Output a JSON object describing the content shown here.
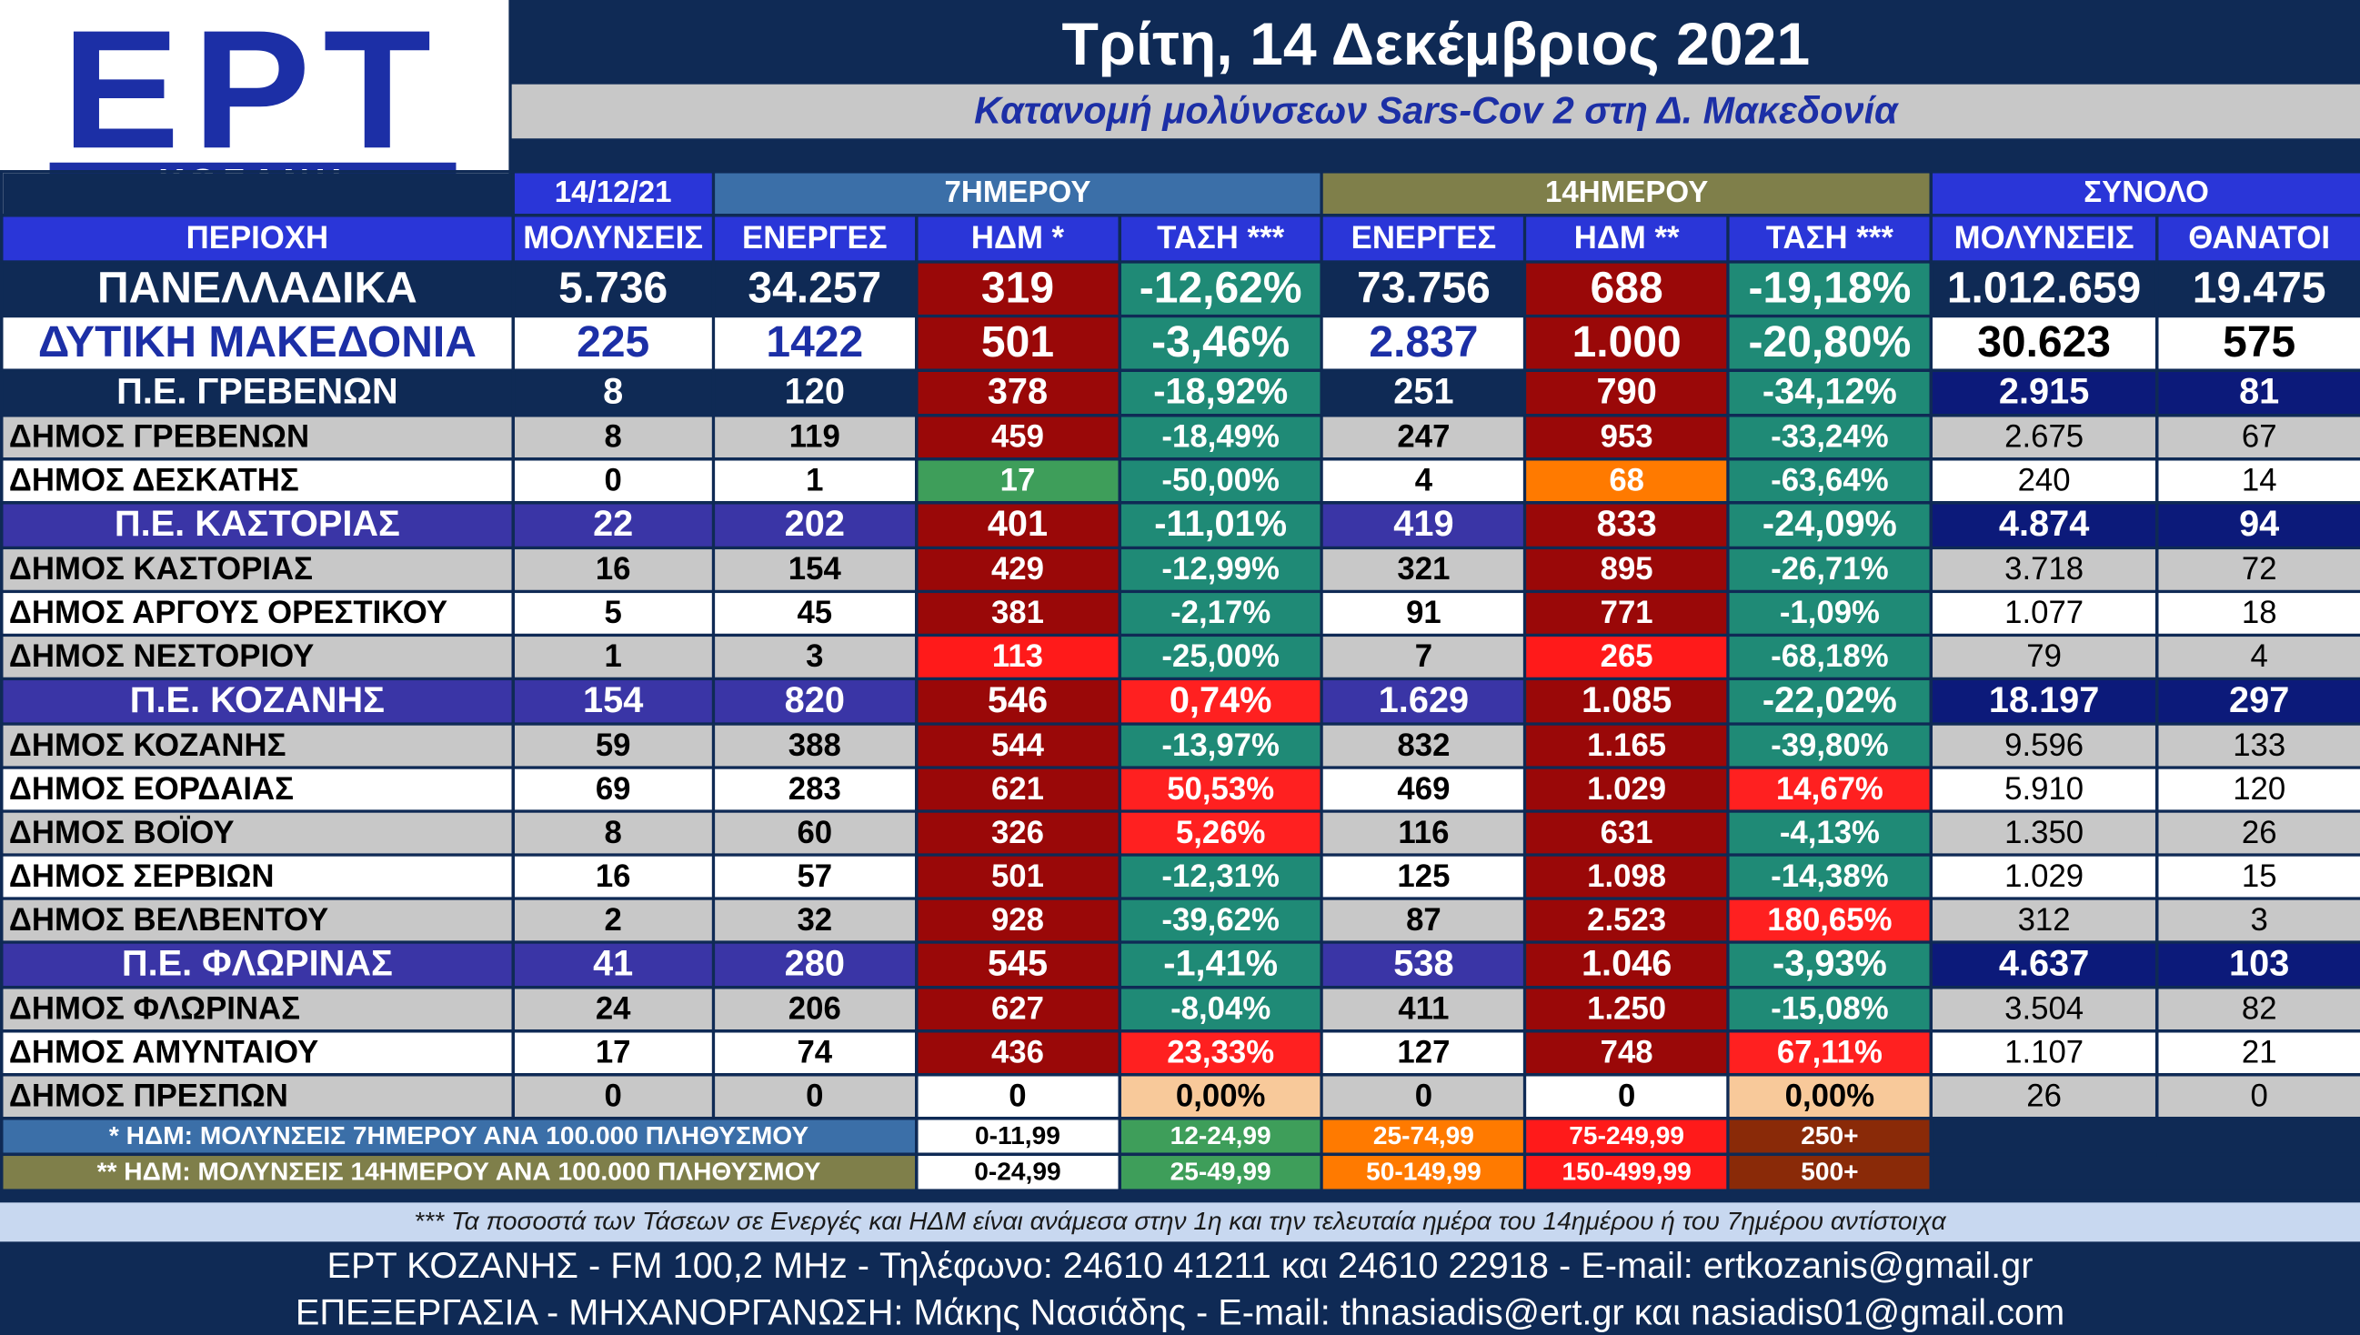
{
  "logo": {
    "top": "ΕΡΤ",
    "bottom": "ΚΟΖΑΝΗ"
  },
  "title": "Τρίτη, 14 Δεκέμβριος 2021",
  "subtitle": "Κατανομή μολύνσεων Sars-Cov 2 στη Δ. Μακεδονία",
  "header_groups": [
    "14/12/21",
    "7ΗΜΕΡΟΥ",
    "14ΗΜΕΡΟΥ",
    "ΣΥΝΟΛΟ"
  ],
  "columns": [
    "ΠΕΡΙΟΧΗ",
    "ΜΟΛΥΝΣΕΙΣ",
    "ΕΝΕΡΓΕΣ",
    "ΗΔΜ *",
    "ΤΑΣΗ ***",
    "ΕΝΕΡΓΕΣ",
    "ΗΔΜ **",
    "ΤΑΣΗ ***",
    "ΜΟΛΥΝΣΕΙΣ",
    "ΘΑΝΑΤΟΙ"
  ],
  "rows": [
    {
      "type": "tot1",
      "cells": [
        "ΠΑΝΕΛΛΑΔΙΚΑ",
        "5.736",
        "34.257",
        "319",
        "-12,62%",
        "73.756",
        "688",
        "-19,18%",
        "1.012.659",
        "19.475"
      ]
    },
    {
      "type": "tot2",
      "cells": [
        "ΔΥΤΙΚΗ ΜΑΚΕΔΟΝΙΑ",
        "225",
        "1422",
        "501",
        "-3,46%",
        "2.837",
        "1.000",
        "-20,80%",
        "30.623",
        "575"
      ]
    },
    {
      "type": "pe",
      "shade": "dark",
      "cells": [
        "Π.Ε. ΓΡΕΒΕΝΩΝ",
        "8",
        "120",
        "378",
        "-18,92%",
        "251",
        "790",
        "-34,12%",
        "2.915",
        "81"
      ]
    },
    {
      "type": "dm",
      "shade": "grey",
      "cells": [
        "ΔΗΜΟΣ ΓΡΕΒΕΝΩΝ",
        "8",
        "119",
        "459",
        "-18,49%",
        "247",
        "953",
        "-33,24%",
        "2.675",
        "67"
      ]
    },
    {
      "type": "dm",
      "shade": "white",
      "cells": [
        "ΔΗΜΟΣ ΔΕΣΚΑΤΗΣ",
        "0",
        "1",
        "17",
        "-50,00%",
        "4",
        "68",
        "-63,64%",
        "240",
        "14"
      ]
    },
    {
      "type": "pe",
      "shade": "purple",
      "cells": [
        "Π.Ε. ΚΑΣΤΟΡΙΑΣ",
        "22",
        "202",
        "401",
        "-11,01%",
        "419",
        "833",
        "-24,09%",
        "4.874",
        "94"
      ]
    },
    {
      "type": "dm",
      "shade": "grey",
      "cells": [
        "ΔΗΜΟΣ ΚΑΣΤΟΡΙΑΣ",
        "16",
        "154",
        "429",
        "-12,99%",
        "321",
        "895",
        "-26,71%",
        "3.718",
        "72"
      ]
    },
    {
      "type": "dm",
      "shade": "white",
      "cells": [
        "ΔΗΜΟΣ ΑΡΓΟΥΣ ΟΡΕΣΤΙΚΟΥ",
        "5",
        "45",
        "381",
        "-2,17%",
        "91",
        "771",
        "-1,09%",
        "1.077",
        "18"
      ]
    },
    {
      "type": "dm",
      "shade": "grey",
      "cells": [
        "ΔΗΜΟΣ ΝΕΣΤΟΡΙΟΥ",
        "1",
        "3",
        "113",
        "-25,00%",
        "7",
        "265",
        "-68,18%",
        "79",
        "4"
      ]
    },
    {
      "type": "pe",
      "shade": "purple",
      "cells": [
        "Π.Ε. ΚΟΖΑΝΗΣ",
        "154",
        "820",
        "546",
        "0,74%",
        "1.629",
        "1.085",
        "-22,02%",
        "18.197",
        "297"
      ]
    },
    {
      "type": "dm",
      "shade": "grey",
      "cells": [
        "ΔΗΜΟΣ ΚΟΖΑΝΗΣ",
        "59",
        "388",
        "544",
        "-13,97%",
        "832",
        "1.165",
        "-39,80%",
        "9.596",
        "133"
      ]
    },
    {
      "type": "dm",
      "shade": "white",
      "cells": [
        "ΔΗΜΟΣ ΕΟΡΔΑΙΑΣ",
        "69",
        "283",
        "621",
        "50,53%",
        "469",
        "1.029",
        "14,67%",
        "5.910",
        "120"
      ]
    },
    {
      "type": "dm",
      "shade": "grey",
      "cells": [
        "ΔΗΜΟΣ ΒΟΪΟΥ",
        "8",
        "60",
        "326",
        "5,26%",
        "116",
        "631",
        "-4,13%",
        "1.350",
        "26"
      ]
    },
    {
      "type": "dm",
      "shade": "white",
      "cells": [
        "ΔΗΜΟΣ ΣΕΡΒΙΩΝ",
        "16",
        "57",
        "501",
        "-12,31%",
        "125",
        "1.098",
        "-14,38%",
        "1.029",
        "15"
      ]
    },
    {
      "type": "dm",
      "shade": "grey",
      "cells": [
        "ΔΗΜΟΣ ΒΕΛΒΕΝΤΟΥ",
        "2",
        "32",
        "928",
        "-39,62%",
        "87",
        "2.523",
        "180,65%",
        "312",
        "3"
      ]
    },
    {
      "type": "pe",
      "shade": "purple",
      "cells": [
        "Π.Ε. ΦΛΩΡΙΝΑΣ",
        "41",
        "280",
        "545",
        "-1,41%",
        "538",
        "1.046",
        "-3,93%",
        "4.637",
        "103"
      ]
    },
    {
      "type": "dm",
      "shade": "grey",
      "cells": [
        "ΔΗΜΟΣ ΦΛΩΡΙΝΑΣ",
        "24",
        "206",
        "627",
        "-8,04%",
        "411",
        "1.250",
        "-15,08%",
        "3.504",
        "82"
      ]
    },
    {
      "type": "dm",
      "shade": "white",
      "cells": [
        "ΔΗΜΟΣ ΑΜΥΝΤΑΙΟΥ",
        "17",
        "74",
        "436",
        "23,33%",
        "127",
        "748",
        "67,11%",
        "1.107",
        "21"
      ]
    },
    {
      "type": "dm",
      "shade": "grey",
      "cells": [
        "ΔΗΜΟΣ ΠΡΕΣΠΩΝ",
        "0",
        "0",
        "0",
        "0,00%",
        "0",
        "0",
        "0,00%",
        "26",
        "0"
      ]
    }
  ],
  "legend": [
    {
      "label": "* ΗΔΜ: ΜΟΛΥΝΣΕΙΣ 7ΗΜΕΡΟΥ ΑΝΑ 100.000 ΠΛΗΘΥΣΜΟΥ",
      "ranges": [
        "0-11,99",
        "12-24,99",
        "25-74,99",
        "75-249,99",
        "250+"
      ]
    },
    {
      "label": "** ΗΔΜ: ΜΟΛΥΝΣΕΙΣ 14ΗΜΕΡΟΥ ΑΝΑ 100.000 ΠΛΗΘΥΣΜΟΥ",
      "ranges": [
        "0-24,99",
        "25-49,99",
        "50-149,99",
        "150-499,99",
        "500+"
      ]
    }
  ],
  "note": "*** Τα ποσοστά των Τάσεων σε Ενεργές και ΗΔΜ είναι ανάμεσα στην 1η και την τελευταία ημέρα του 14ημέρου ή του 7ημέρου αντίστοιχα",
  "footer_line1": "ΕΡΤ ΚΟΖΑΝΗΣ - FM 100,2 MHz - Τηλέφωνο:  24610 41211 και 24610 22918 - E-mail: ertkozanis@gmail.gr",
  "footer_line2": "ΕΠΕΞΕΡΓΑΣΙΑ  -  ΜΗΧΑΝΟΡΓΑΝΩΣΗ: Μάκης Νασιάδης  -   E-mail: thnasiadis@ert.gr και nasiadis01@gmail.com",
  "colors": {
    "navy": "#0f2a55",
    "header_blue": "#2a36d8",
    "purple": "#3a35a6",
    "grey": "#c8c8c8",
    "white": "#ffffff",
    "hdm_darkred": "#9a0808",
    "hdm_red": "#ff1a1a",
    "hdm_orange": "#ff7a00",
    "hdm_green": "#3e9e5a",
    "hdm_white": "#ffffff",
    "trend_teal": "#1f8a76",
    "trend_red": "#ff2020",
    "trend_peach": "#f8c99a",
    "total_navy": "#0c1a7a",
    "olive": "#7f7f4a",
    "header7": "#3b6fa8",
    "legend1": "#3b6fa8",
    "legend2": "#7f7f4a",
    "legend_brown": "#8a2a08"
  }
}
